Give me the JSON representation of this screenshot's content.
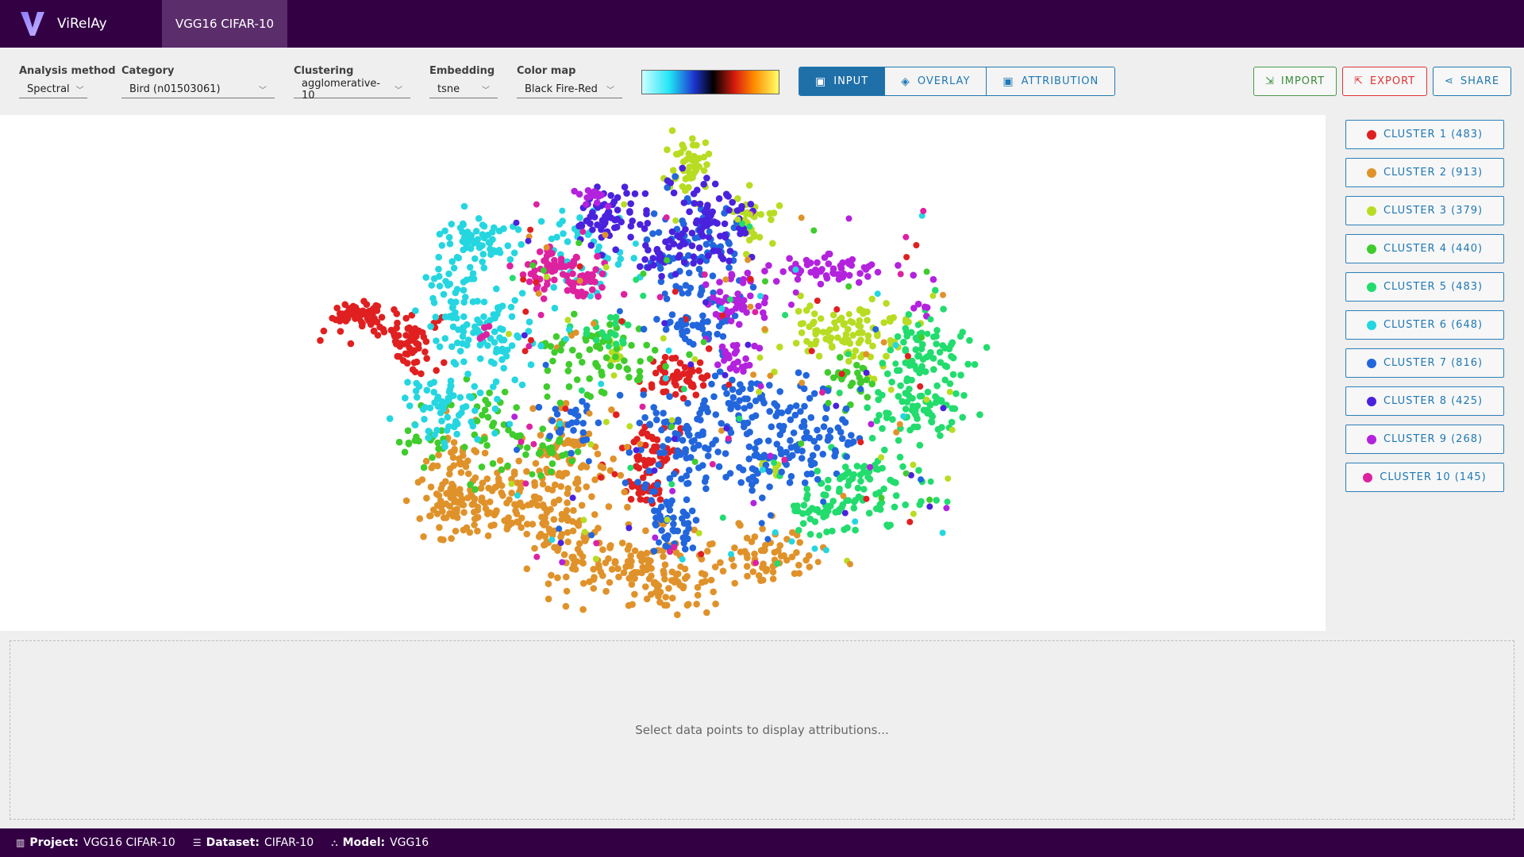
{
  "app": {
    "name": "ViRelAy",
    "project_tab": "VGG16 CIFAR-10"
  },
  "toolbar": {
    "analysis": {
      "label": "Analysis method",
      "value": "Spectral"
    },
    "category": {
      "label": "Category",
      "value": "Bird (n01503061)"
    },
    "clustering": {
      "label": "Clustering",
      "value": "agglomerative-10"
    },
    "embedding": {
      "label": "Embedding",
      "value": "tsne"
    },
    "colormap": {
      "label": "Color map",
      "value": "Black Fire-Red"
    },
    "view": {
      "input": "INPUT",
      "overlay": "OVERLAY",
      "attribution": "ATTRIBUTION",
      "active": "input"
    },
    "import": "IMPORT",
    "export": "EXPORT",
    "share": "SHARE"
  },
  "clusters": [
    {
      "label": "CLUSTER 1 (483)",
      "color": "#e02020"
    },
    {
      "label": "CLUSTER 2 (913)",
      "color": "#e0922a"
    },
    {
      "label": "CLUSTER 3 (379)",
      "color": "#b8dc22"
    },
    {
      "label": "CLUSTER 4 (440)",
      "color": "#3fcc2c"
    },
    {
      "label": "CLUSTER 5 (483)",
      "color": "#22dc6e"
    },
    {
      "label": "CLUSTER 6 (648)",
      "color": "#25d6e0"
    },
    {
      "label": "CLUSTER 7 (816)",
      "color": "#2266dd"
    },
    {
      "label": "CLUSTER 8 (425)",
      "color": "#4a22dd"
    },
    {
      "label": "CLUSTER 9 (268)",
      "color": "#b322dd"
    },
    {
      "label": "CLUSTER 10 (145)",
      "color": "#dd22a0"
    }
  ],
  "attribution_placeholder": "Select data points to display attributions...",
  "footer": {
    "project_label": "Project:",
    "project": "VGG16 CIFAR-10",
    "dataset_label": "Dataset:",
    "dataset": "CIFAR-10",
    "model_label": "Model:",
    "model": "VGG16"
  }
}
